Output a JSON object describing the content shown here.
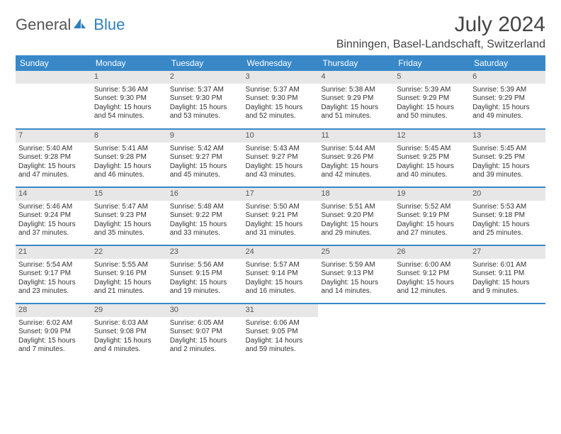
{
  "logo": {
    "part1": "General",
    "part2": "Blue"
  },
  "title": "July 2024",
  "location": "Binningen, Basel-Landschaft, Switzerland",
  "colors": {
    "header_bg": "#3888c8",
    "header_text": "#ffffff",
    "daynum_bg": "#e7e7e7",
    "row_divider": "#3888c8",
    "text": "#333333",
    "logo_gray": "#555555",
    "logo_blue": "#2f7fbf"
  },
  "weekdays": [
    "Sunday",
    "Monday",
    "Tuesday",
    "Wednesday",
    "Thursday",
    "Friday",
    "Saturday"
  ],
  "weeks": [
    [
      null,
      {
        "n": "1",
        "sr": "Sunrise: 5:36 AM",
        "ss": "Sunset: 9:30 PM",
        "d1": "Daylight: 15 hours",
        "d2": "and 54 minutes."
      },
      {
        "n": "2",
        "sr": "Sunrise: 5:37 AM",
        "ss": "Sunset: 9:30 PM",
        "d1": "Daylight: 15 hours",
        "d2": "and 53 minutes."
      },
      {
        "n": "3",
        "sr": "Sunrise: 5:37 AM",
        "ss": "Sunset: 9:30 PM",
        "d1": "Daylight: 15 hours",
        "d2": "and 52 minutes."
      },
      {
        "n": "4",
        "sr": "Sunrise: 5:38 AM",
        "ss": "Sunset: 9:29 PM",
        "d1": "Daylight: 15 hours",
        "d2": "and 51 minutes."
      },
      {
        "n": "5",
        "sr": "Sunrise: 5:39 AM",
        "ss": "Sunset: 9:29 PM",
        "d1": "Daylight: 15 hours",
        "d2": "and 50 minutes."
      },
      {
        "n": "6",
        "sr": "Sunrise: 5:39 AM",
        "ss": "Sunset: 9:29 PM",
        "d1": "Daylight: 15 hours",
        "d2": "and 49 minutes."
      }
    ],
    [
      {
        "n": "7",
        "sr": "Sunrise: 5:40 AM",
        "ss": "Sunset: 9:28 PM",
        "d1": "Daylight: 15 hours",
        "d2": "and 47 minutes."
      },
      {
        "n": "8",
        "sr": "Sunrise: 5:41 AM",
        "ss": "Sunset: 9:28 PM",
        "d1": "Daylight: 15 hours",
        "d2": "and 46 minutes."
      },
      {
        "n": "9",
        "sr": "Sunrise: 5:42 AM",
        "ss": "Sunset: 9:27 PM",
        "d1": "Daylight: 15 hours",
        "d2": "and 45 minutes."
      },
      {
        "n": "10",
        "sr": "Sunrise: 5:43 AM",
        "ss": "Sunset: 9:27 PM",
        "d1": "Daylight: 15 hours",
        "d2": "and 43 minutes."
      },
      {
        "n": "11",
        "sr": "Sunrise: 5:44 AM",
        "ss": "Sunset: 9:26 PM",
        "d1": "Daylight: 15 hours",
        "d2": "and 42 minutes."
      },
      {
        "n": "12",
        "sr": "Sunrise: 5:45 AM",
        "ss": "Sunset: 9:25 PM",
        "d1": "Daylight: 15 hours",
        "d2": "and 40 minutes."
      },
      {
        "n": "13",
        "sr": "Sunrise: 5:45 AM",
        "ss": "Sunset: 9:25 PM",
        "d1": "Daylight: 15 hours",
        "d2": "and 39 minutes."
      }
    ],
    [
      {
        "n": "14",
        "sr": "Sunrise: 5:46 AM",
        "ss": "Sunset: 9:24 PM",
        "d1": "Daylight: 15 hours",
        "d2": "and 37 minutes."
      },
      {
        "n": "15",
        "sr": "Sunrise: 5:47 AM",
        "ss": "Sunset: 9:23 PM",
        "d1": "Daylight: 15 hours",
        "d2": "and 35 minutes."
      },
      {
        "n": "16",
        "sr": "Sunrise: 5:48 AM",
        "ss": "Sunset: 9:22 PM",
        "d1": "Daylight: 15 hours",
        "d2": "and 33 minutes."
      },
      {
        "n": "17",
        "sr": "Sunrise: 5:50 AM",
        "ss": "Sunset: 9:21 PM",
        "d1": "Daylight: 15 hours",
        "d2": "and 31 minutes."
      },
      {
        "n": "18",
        "sr": "Sunrise: 5:51 AM",
        "ss": "Sunset: 9:20 PM",
        "d1": "Daylight: 15 hours",
        "d2": "and 29 minutes."
      },
      {
        "n": "19",
        "sr": "Sunrise: 5:52 AM",
        "ss": "Sunset: 9:19 PM",
        "d1": "Daylight: 15 hours",
        "d2": "and 27 minutes."
      },
      {
        "n": "20",
        "sr": "Sunrise: 5:53 AM",
        "ss": "Sunset: 9:18 PM",
        "d1": "Daylight: 15 hours",
        "d2": "and 25 minutes."
      }
    ],
    [
      {
        "n": "21",
        "sr": "Sunrise: 5:54 AM",
        "ss": "Sunset: 9:17 PM",
        "d1": "Daylight: 15 hours",
        "d2": "and 23 minutes."
      },
      {
        "n": "22",
        "sr": "Sunrise: 5:55 AM",
        "ss": "Sunset: 9:16 PM",
        "d1": "Daylight: 15 hours",
        "d2": "and 21 minutes."
      },
      {
        "n": "23",
        "sr": "Sunrise: 5:56 AM",
        "ss": "Sunset: 9:15 PM",
        "d1": "Daylight: 15 hours",
        "d2": "and 19 minutes."
      },
      {
        "n": "24",
        "sr": "Sunrise: 5:57 AM",
        "ss": "Sunset: 9:14 PM",
        "d1": "Daylight: 15 hours",
        "d2": "and 16 minutes."
      },
      {
        "n": "25",
        "sr": "Sunrise: 5:59 AM",
        "ss": "Sunset: 9:13 PM",
        "d1": "Daylight: 15 hours",
        "d2": "and 14 minutes."
      },
      {
        "n": "26",
        "sr": "Sunrise: 6:00 AM",
        "ss": "Sunset: 9:12 PM",
        "d1": "Daylight: 15 hours",
        "d2": "and 12 minutes."
      },
      {
        "n": "27",
        "sr": "Sunrise: 6:01 AM",
        "ss": "Sunset: 9:11 PM",
        "d1": "Daylight: 15 hours",
        "d2": "and 9 minutes."
      }
    ],
    [
      {
        "n": "28",
        "sr": "Sunrise: 6:02 AM",
        "ss": "Sunset: 9:09 PM",
        "d1": "Daylight: 15 hours",
        "d2": "and 7 minutes."
      },
      {
        "n": "29",
        "sr": "Sunrise: 6:03 AM",
        "ss": "Sunset: 9:08 PM",
        "d1": "Daylight: 15 hours",
        "d2": "and 4 minutes."
      },
      {
        "n": "30",
        "sr": "Sunrise: 6:05 AM",
        "ss": "Sunset: 9:07 PM",
        "d1": "Daylight: 15 hours",
        "d2": "and 2 minutes."
      },
      {
        "n": "31",
        "sr": "Sunrise: 6:06 AM",
        "ss": "Sunset: 9:05 PM",
        "d1": "Daylight: 14 hours",
        "d2": "and 59 minutes."
      },
      null,
      null,
      null
    ]
  ]
}
